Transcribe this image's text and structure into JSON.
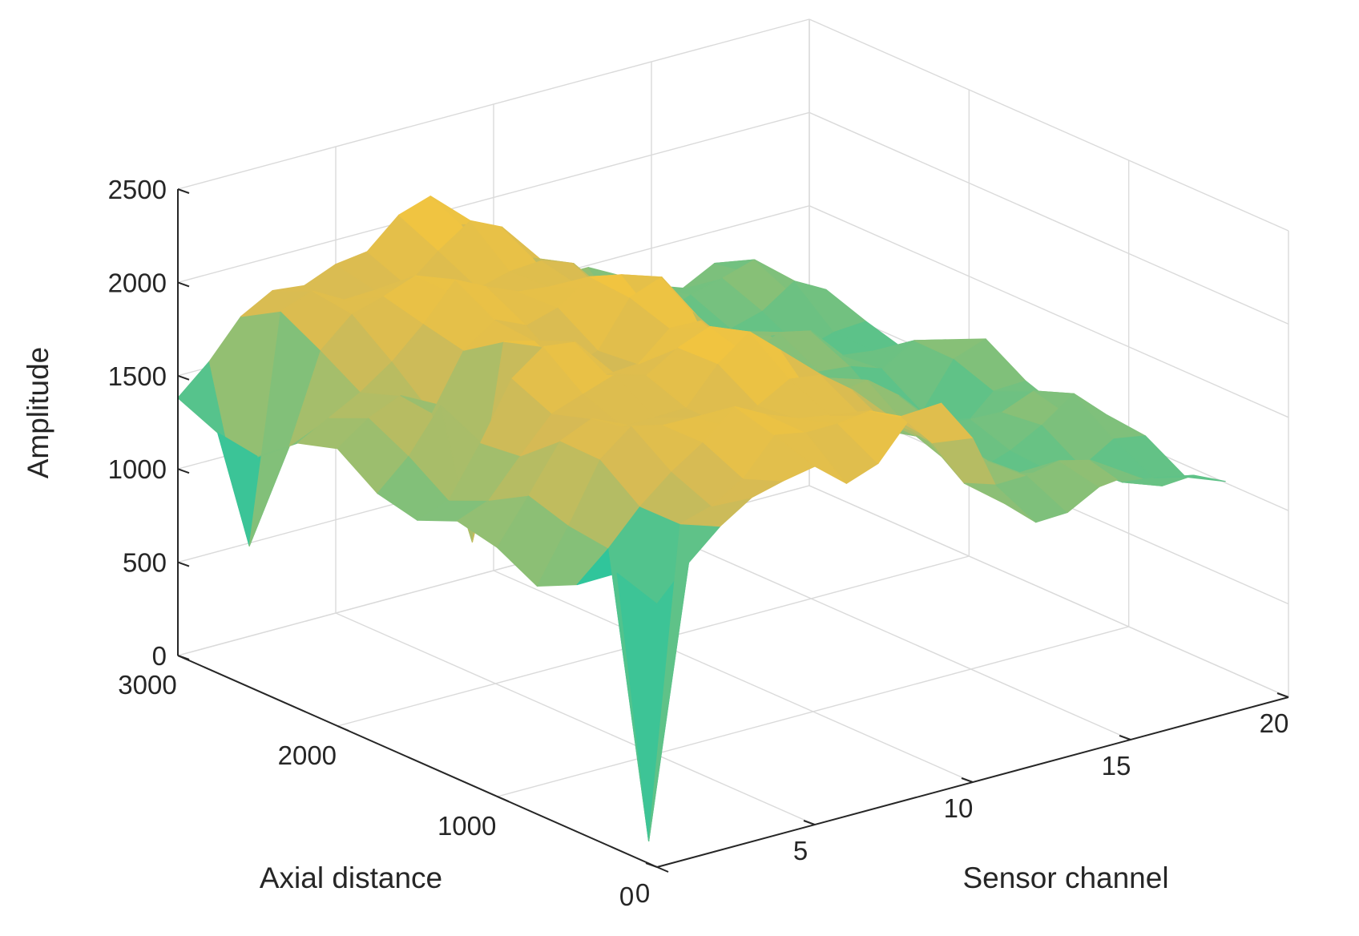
{
  "chart_data": {
    "type": "mesh3d",
    "title": "",
    "xlabel": "Sensor channel",
    "ylabel": "Axial distance",
    "zlabel": "Amplitude",
    "xlim": [
      0,
      20
    ],
    "ylim": [
      0,
      3000
    ],
    "zlim": [
      0,
      2500
    ],
    "xticks": [
      "0",
      "5",
      "10",
      "15",
      "20"
    ],
    "yticks": [
      "0",
      "1000",
      "2000",
      "3000"
    ],
    "zticks": [
      "0",
      "500",
      "1000",
      "1500",
      "2000",
      "2500"
    ],
    "grid": true,
    "colormap": "parula",
    "colormap_colors": [
      "#3e26a8",
      "#2f6efb",
      "#12b2d8",
      "#30c59b",
      "#92bf73",
      "#d5ba55",
      "#fcc838",
      "#f9fb15"
    ],
    "sensor_channels": [
      0,
      1,
      2,
      3,
      4,
      5,
      6,
      7,
      8,
      9,
      10,
      11,
      12,
      13,
      14,
      15,
      16,
      17,
      18
    ],
    "axial_distance": [
      0,
      250,
      500,
      750,
      1000,
      1250,
      1500,
      1750,
      2000,
      2250,
      2500,
      2750,
      3000
    ],
    "amplitude_profile_by_channel": [
      1350,
      1500,
      1700,
      1850,
      1900,
      1950,
      1850,
      1900,
      2000,
      1950,
      1750,
      1500,
      1450,
      1400,
      1350,
      1300,
      1250,
      1350,
      1300
    ],
    "dip_locations": [
      {
        "channel": 1,
        "axial": 250,
        "amplitude": 0
      },
      {
        "channel": 1,
        "axial": 2700,
        "amplitude": 400
      },
      {
        "channel": 3,
        "axial": 1800,
        "amplitude": 700
      }
    ]
  }
}
